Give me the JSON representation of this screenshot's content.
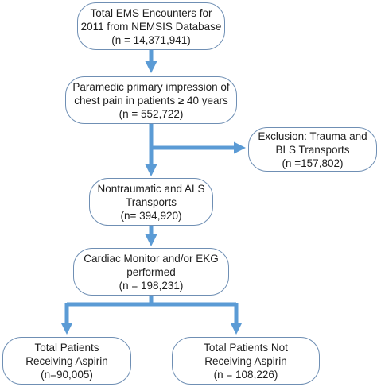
{
  "colors": {
    "arrow": "#5b9bd5",
    "box_border": "#6f8fb4",
    "text": "#1e1e1e"
  },
  "boxes": {
    "total": {
      "line1": "Total EMS Encounters for",
      "line2": "2011 from NEMSIS Database",
      "line3": "(n = 14,371,941)"
    },
    "chest_pain": {
      "line1": "Paramedic primary impression of",
      "line2": "chest pain in patients ≥ 40 years",
      "line3": "(n = 552,722)"
    },
    "exclusion": {
      "line1": "Exclusion: Trauma and",
      "line2": "BLS Transports",
      "line3": "(n =157,802)"
    },
    "nontraumatic": {
      "line1": "Nontraumatic and ALS",
      "line2": "Transports",
      "line3": "(n= 394,920)"
    },
    "cardiac": {
      "line1": "Cardiac Monitor and/or EKG",
      "line2": "performed",
      "line3": "(n = 198,231)"
    },
    "aspirin": {
      "line1": "Total Patients",
      "line2": "Receiving Aspirin",
      "line3": "(n=90,005)"
    },
    "no_aspirin": {
      "line1": "Total Patients Not",
      "line2": "Receiving Aspirin",
      "line3": "(n = 108,226)"
    }
  }
}
